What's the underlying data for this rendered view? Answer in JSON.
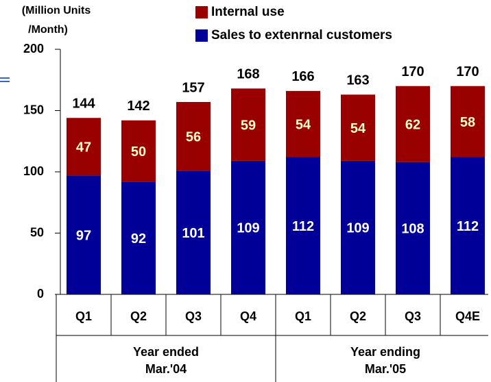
{
  "chart_data": {
    "type": "stacked_bar",
    "ylabel": [
      "(Million Units",
      "/Month)"
    ],
    "categories": [
      "Q1",
      "Q2",
      "Q3",
      "Q4",
      "Q1",
      "Q2",
      "Q3",
      "Q4E"
    ],
    "groups": [
      [
        "Year ended",
        "Mar.'04"
      ],
      [
        "Year ending",
        "Mar.'05"
      ]
    ],
    "series": [
      {
        "name": "Sales to extenrnal customers",
        "color": "#000099",
        "label_color": "#ffffff",
        "values": [
          97,
          92,
          101,
          109,
          112,
          109,
          108,
          112
        ]
      },
      {
        "name": "Internal use",
        "color": "#990000",
        "label_color": "#ffffcc",
        "values": [
          47,
          50,
          56,
          59,
          54,
          54,
          62,
          58
        ]
      }
    ],
    "totals": [
      144,
      142,
      157,
      168,
      166,
      163,
      170,
      170
    ],
    "ylim": [
      0,
      200
    ],
    "yticks": [
      0,
      50,
      100,
      150,
      200
    ]
  }
}
